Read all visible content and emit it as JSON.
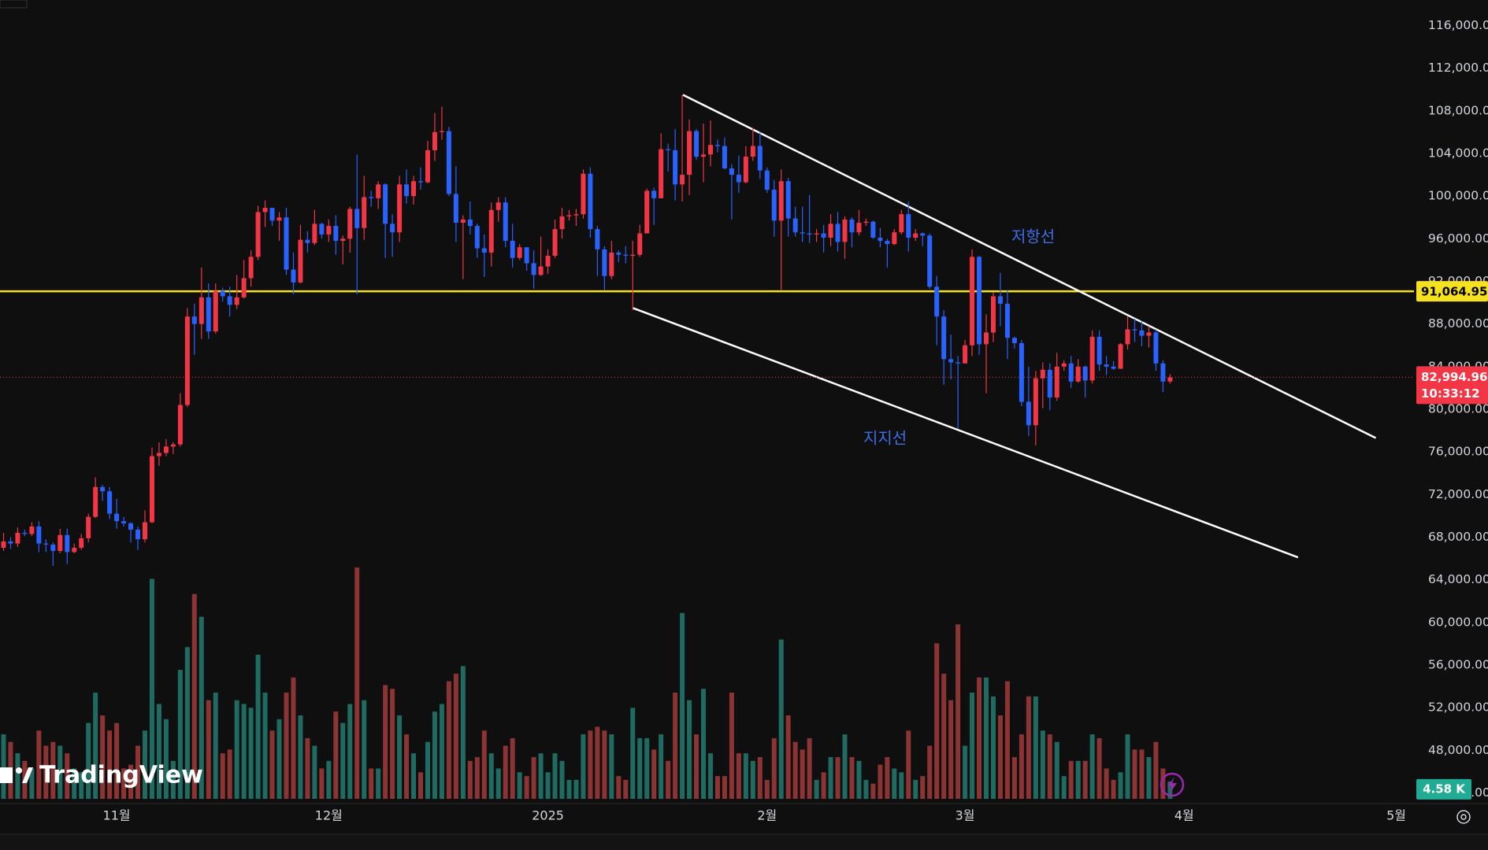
{
  "chart_data": {
    "type": "candlestick",
    "watermark": "TradingView",
    "grid": false,
    "up_color": "#f23645",
    "down_color": "#2962ff",
    "xlim": [
      -0.5,
      199.5
    ],
    "xticks": [
      {
        "value": 16,
        "label": "11월"
      },
      {
        "value": 46,
        "label": "12월"
      },
      {
        "value": 77,
        "label": "2025"
      },
      {
        "value": 108,
        "label": "2월"
      },
      {
        "value": 136,
        "label": "3월"
      },
      {
        "value": 167,
        "label": "4월"
      },
      {
        "value": 197,
        "label": "5월"
      }
    ],
    "ylim": [
      43000,
      118400
    ],
    "yticks": [
      {
        "value": 116000,
        "label": "116,000.00"
      },
      {
        "value": 112000,
        "label": "112,000.00"
      },
      {
        "value": 108000,
        "label": "108,000.00"
      },
      {
        "value": 104000,
        "label": "104,000.00"
      },
      {
        "value": 100000,
        "label": "100,000.00"
      },
      {
        "value": 96000,
        "label": "96,000.00"
      },
      {
        "value": 92000,
        "label": "92,000.00"
      },
      {
        "value": 88000,
        "label": "88,000.00"
      },
      {
        "value": 84000,
        "label": "84,000.00"
      },
      {
        "value": 80000,
        "label": "80,000.00"
      },
      {
        "value": 76000,
        "label": "76,000.00"
      },
      {
        "value": 72000,
        "label": "72,000.00"
      },
      {
        "value": 68000,
        "label": "68,000.00"
      },
      {
        "value": 64000,
        "label": "64,000.00"
      },
      {
        "value": 60000,
        "label": "60,000.00"
      },
      {
        "value": 56000,
        "label": "56,000.00"
      },
      {
        "value": 52000,
        "label": "52,000.00"
      },
      {
        "value": 48000,
        "label": "48,000.00"
      },
      {
        "value": 44000,
        "label": "44,000.00"
      }
    ],
    "x": [
      0,
      1,
      2,
      3,
      4,
      5,
      6,
      7,
      8,
      9,
      10,
      11,
      12,
      13,
      14,
      15,
      16,
      17,
      18,
      19,
      20,
      21,
      22,
      23,
      24,
      25,
      26,
      27,
      28,
      29,
      30,
      31,
      32,
      33,
      34,
      35,
      36,
      37,
      38,
      39,
      40,
      41,
      42,
      43,
      44,
      45,
      46,
      47,
      48,
      49,
      50,
      51,
      52,
      53,
      54,
      55,
      56,
      57,
      58,
      59,
      60,
      61,
      62,
      63,
      64,
      65,
      66,
      67,
      68,
      69,
      70,
      71,
      72,
      73,
      74,
      75,
      76,
      77,
      78,
      79,
      80,
      81,
      82,
      83,
      84,
      85,
      86,
      87,
      88,
      89,
      90,
      91,
      92,
      93,
      94,
      95,
      96,
      97,
      98,
      99,
      100,
      101,
      102,
      103,
      104,
      105,
      106,
      107,
      108,
      109,
      110,
      111,
      112,
      113,
      114,
      115,
      116,
      117,
      118,
      119,
      120,
      121,
      122,
      123,
      124,
      125,
      126,
      127,
      128,
      129,
      130,
      131,
      132,
      133,
      134,
      135,
      136,
      137,
      138,
      139,
      140,
      141,
      142,
      143,
      144,
      145,
      146,
      147,
      148,
      149,
      150,
      151,
      152,
      153,
      154,
      155,
      156,
      157,
      158,
      159,
      160,
      161,
      162,
      163,
      164,
      165
    ],
    "open": [
      67000,
      67600,
      67400,
      68400,
      68300,
      69000,
      67400,
      67300,
      66700,
      68200,
      66600,
      67000,
      67900,
      69900,
      72700,
      72300,
      70200,
      69500,
      69300,
      68700,
      67800,
      69400,
      75600,
      75900,
      76500,
      76700,
      80400,
      88700,
      88000,
      90500,
      87300,
      91100,
      90600,
      89800,
      90500,
      92300,
      94300,
      98500,
      98900,
      97700,
      98000,
      93100,
      91900,
      95900,
      95600,
      97400,
      96400,
      97200,
      95800,
      96000,
      98800,
      97000,
      99900,
      99800,
      101100,
      97400,
      96600,
      101100,
      100000,
      101400,
      101300,
      104300,
      106000,
      106100,
      100200,
      97500,
      97800,
      97200,
      95100,
      94700,
      98700,
      99400,
      95800,
      94200,
      95200,
      93700,
      92600,
      93400,
      94400,
      96900,
      98100,
      98200,
      98300,
      102100,
      96900,
      95000,
      92500,
      94700,
      94500,
      94400,
      94500,
      96500,
      100500,
      99800,
      104400,
      104300,
      101100,
      102000,
      106100,
      103700,
      103900,
      104800,
      104700,
      102600,
      102000,
      101300,
      103700,
      104700,
      102400,
      100600,
      97700,
      101400,
      97900,
      96600,
      96500,
      96400,
      96500,
      96100,
      97400,
      95700,
      97800,
      96600,
      97500,
      97600,
      96100,
      95800,
      95500,
      96600,
      98300,
      96100,
      96500,
      96300,
      91500,
      88700,
      84700,
      84400,
      84300,
      86000,
      94300,
      86100,
      87200,
      90600,
      89900,
      86700,
      86200,
      80700,
      78500,
      82900,
      83700,
      81100,
      84000,
      84300,
      82600,
      84000,
      82700,
      86800,
      84200,
      84000,
      83800,
      86100,
      87500,
      87400,
      86900,
      87200,
      84300,
      82600
    ],
    "high": [
      68400,
      68000,
      68900,
      68700,
      69400,
      69500,
      67800,
      67500,
      68800,
      68800,
      67400,
      68300,
      70200,
      73600,
      72900,
      72700,
      71600,
      69900,
      69400,
      69000,
      70500,
      76400,
      76900,
      77200,
      76900,
      81500,
      89500,
      89900,
      93300,
      91800,
      91800,
      91400,
      91500,
      92600,
      94000,
      94900,
      99100,
      99600,
      98800,
      98500,
      98900,
      94700,
      97300,
      96700,
      98700,
      97500,
      97800,
      98200,
      96300,
      99000,
      103900,
      101900,
      100500,
      101400,
      101200,
      98300,
      101900,
      102500,
      101900,
      102700,
      105200,
      107800,
      108400,
      106500,
      102800,
      98200,
      99500,
      97400,
      96400,
      99400,
      99900,
      99900,
      97400,
      95500,
      95200,
      94900,
      96200,
      95000,
      97800,
      98900,
      98700,
      98800,
      102500,
      102700,
      97200,
      95300,
      95800,
      94900,
      95300,
      95800,
      97300,
      100700,
      100800,
      105900,
      104900,
      106300,
      109500,
      107200,
      106300,
      106800,
      107100,
      105300,
      105500,
      103000,
      103800,
      104700,
      106400,
      106000,
      102700,
      101500,
      102500,
      101700,
      99000,
      99000,
      100100,
      96900,
      97300,
      98300,
      98500,
      98100,
      98000,
      98700,
      97900,
      97700,
      97000,
      96000,
      96900,
      98700,
      99500,
      96900,
      96600,
      96500,
      92500,
      89300,
      87000,
      85000,
      86500,
      95000,
      94400,
      88900,
      91000,
      92800,
      91200,
      86800,
      86500,
      84000,
      83600,
      84400,
      84300,
      85300,
      84600,
      85000,
      84700,
      84100,
      87400,
      87400,
      85000,
      84500,
      86200,
      88700,
      88500,
      88300,
      87800,
      87500,
      84600,
      83300
    ],
    "low": [
      66700,
      66900,
      67100,
      68100,
      68100,
      66600,
      66600,
      65300,
      66500,
      65500,
      66500,
      66800,
      67500,
      69800,
      71400,
      69700,
      68800,
      69000,
      67500,
      66800,
      67500,
      69300,
      74700,
      75600,
      75800,
      76500,
      80200,
      85100,
      86600,
      86600,
      87100,
      90100,
      88700,
      89400,
      90400,
      91500,
      94000,
      97100,
      97200,
      95800,
      92600,
      90800,
      91800,
      94700,
      95400,
      96000,
      95700,
      94500,
      93600,
      94700,
      90800,
      95900,
      99000,
      98800,
      94200,
      94300,
      95700,
      99300,
      99200,
      100600,
      101200,
      103300,
      105300,
      100000,
      95700,
      92200,
      96400,
      94200,
      92400,
      93400,
      97600,
      95200,
      93300,
      94000,
      93000,
      91300,
      92500,
      92700,
      94200,
      96000,
      97700,
      97200,
      97900,
      96100,
      92500,
      91200,
      92200,
      93800,
      93700,
      89300,
      94300,
      96500,
      97300,
      99800,
      102300,
      99600,
      99500,
      100100,
      103400,
      101300,
      102800,
      104100,
      102500,
      97800,
      100300,
      101200,
      103300,
      101600,
      100300,
      96200,
      91200,
      96200,
      96200,
      95700,
      95600,
      95700,
      94700,
      95300,
      94800,
      94100,
      95200,
      96300,
      97200,
      96000,
      95200,
      93300,
      95400,
      96400,
      94800,
      95800,
      95300,
      91300,
      86000,
      82300,
      82800,
      78200,
      84300,
      85000,
      85100,
      81500,
      86300,
      87800,
      84700,
      85700,
      80300,
      77500,
      76600,
      80100,
      79900,
      80800,
      83600,
      82000,
      82500,
      81100,
      82400,
      83600,
      83200,
      83700,
      83800,
      85600,
      86300,
      85900,
      85800,
      83600,
      81600,
      82400
    ],
    "close": [
      67600,
      67400,
      68400,
      68300,
      69000,
      67400,
      67300,
      66700,
      68200,
      66600,
      67000,
      67900,
      69900,
      72700,
      72300,
      70200,
      69500,
      69300,
      68700,
      67800,
      69400,
      75600,
      75900,
      76500,
      76700,
      80400,
      88700,
      88000,
      90500,
      87300,
      91100,
      90600,
      89800,
      90500,
      92300,
      94300,
      98500,
      98900,
      97700,
      98000,
      93100,
      91900,
      95900,
      95600,
      97400,
      96400,
      97200,
      95800,
      96000,
      98800,
      97000,
      99900,
      99800,
      101100,
      97400,
      96600,
      101100,
      100000,
      101400,
      101300,
      104300,
      106000,
      106100,
      100200,
      97500,
      97800,
      97200,
      95100,
      94700,
      98700,
      99400,
      95800,
      94200,
      95200,
      93700,
      92600,
      93400,
      94400,
      96900,
      98100,
      98200,
      98300,
      102100,
      96900,
      95000,
      92500,
      94700,
      94500,
      94400,
      94500,
      96500,
      100500,
      99800,
      104400,
      104300,
      101100,
      102000,
      106100,
      103700,
      103900,
      104800,
      104700,
      102600,
      102000,
      101300,
      103700,
      104700,
      102400,
      100600,
      97700,
      101400,
      97900,
      96600,
      96500,
      96400,
      96500,
      96100,
      97400,
      95700,
      97800,
      96600,
      97500,
      97600,
      96100,
      95800,
      95500,
      96600,
      98300,
      96100,
      96500,
      96300,
      91500,
      88700,
      84700,
      84400,
      84300,
      86000,
      94300,
      86100,
      87200,
      90600,
      89900,
      86700,
      86200,
      80700,
      78500,
      82900,
      83700,
      81100,
      84000,
      84300,
      82600,
      84000,
      82700,
      86800,
      84200,
      84000,
      83800,
      86100,
      87500,
      87400,
      86900,
      87200,
      84300,
      82600,
      82994.96
    ],
    "volume": {
      "up_color": "#1f6b62",
      "down_color": "#8c3434",
      "ylim": [
        0,
        100
      ],
      "values": [
        17,
        15,
        12,
        10,
        8,
        18,
        14,
        15,
        14,
        12,
        8,
        7,
        20,
        28,
        22,
        18,
        20,
        8,
        9,
        14,
        18,
        58,
        25,
        21,
        10,
        34,
        40,
        54,
        48,
        26,
        28,
        12,
        13,
        26,
        25,
        24,
        38,
        28,
        18,
        21,
        28,
        32,
        22,
        16,
        14,
        8,
        10,
        23,
        20,
        25,
        61,
        26,
        8,
        8,
        30,
        29,
        22,
        17,
        12,
        7,
        15,
        23,
        25,
        31,
        33,
        35,
        10,
        11,
        18,
        12,
        8,
        14,
        16,
        7,
        6,
        11,
        12,
        7,
        12,
        10,
        5,
        5,
        17,
        18,
        19,
        18,
        17,
        6,
        5,
        24,
        16,
        16,
        13,
        17,
        10,
        28,
        49,
        26,
        17,
        29,
        12,
        6,
        6,
        28,
        12,
        12,
        10,
        11,
        5,
        16,
        42,
        22,
        15,
        13,
        16,
        5,
        7,
        11,
        11,
        17,
        11,
        10,
        5,
        4,
        9,
        11,
        8,
        7,
        18,
        5,
        6,
        14,
        41,
        33,
        26,
        46,
        14,
        28,
        32,
        32,
        27,
        22,
        31,
        11,
        17,
        27,
        27,
        18,
        17,
        15,
        6,
        10,
        10,
        10,
        17,
        16,
        8,
        5,
        7,
        17,
        13,
        13,
        11,
        15,
        8,
        4.58
      ],
      "last": {
        "value": 4.58,
        "label": "4.58 K"
      },
      "label_color": "#22ab94"
    },
    "hlines": [
      {
        "value": 91064.95,
        "label": "91,064.95",
        "color": "#f5e11d"
      }
    ],
    "last_price": {
      "value": 82994.96,
      "label": "82,994.96",
      "countdown": "10:33:12",
      "color": "#f23645"
    },
    "trendlines": [
      {
        "label": "저항선",
        "color": "#ffffff",
        "x": [
          96.1,
          194.1
        ],
        "y": [
          109500,
          77300
        ]
      },
      {
        "label": "지지선",
        "color": "#ffffff",
        "x": [
          89.0,
          183.1
        ],
        "y": [
          89500,
          66100
        ]
      }
    ]
  }
}
